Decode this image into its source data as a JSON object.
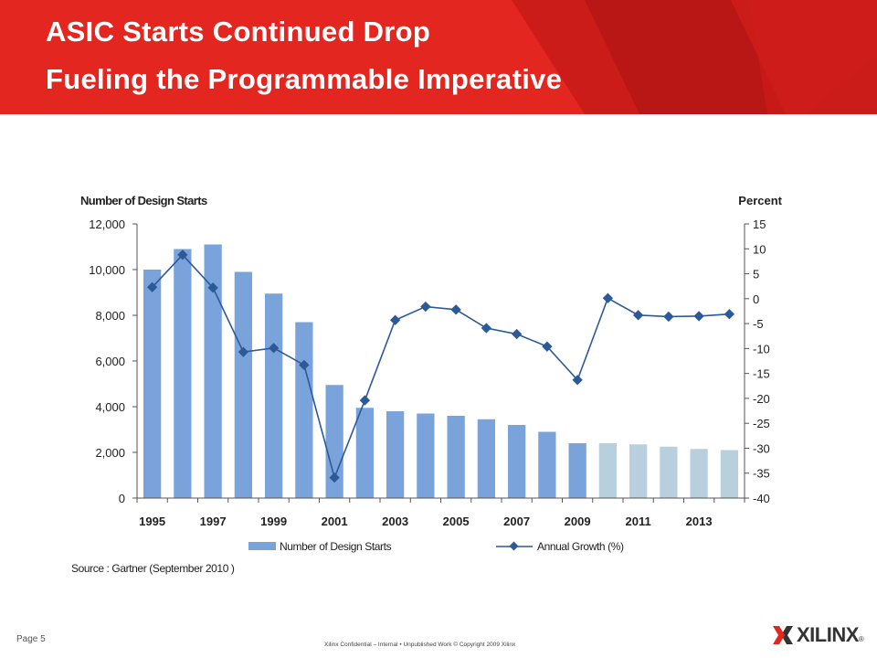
{
  "slide": {
    "title_line1": "ASIC Starts Continued Drop",
    "title_line2": "Fueling the Programmable Imperative",
    "page_label": "Page 5",
    "footer_text": "Xilinx Confidential – Internal • Unpublished Work © Copyright 2009 Xilinx",
    "logo_text": "XILINX",
    "logo_mark": "®"
  },
  "colors": {
    "header_red": "#e3261f",
    "bar_actual": "#7aa3dc",
    "bar_forecast": "#b8d0de",
    "line": "#2c5a99"
  },
  "chart_data": {
    "type": "bar+line",
    "left_axis_title": "Number of Design Starts",
    "right_axis_title": "Percent",
    "source": "Source : Gartner (September 2010 )",
    "x": [
      1995,
      1996,
      1997,
      1998,
      1999,
      2000,
      2001,
      2002,
      2003,
      2004,
      2005,
      2006,
      2007,
      2008,
      2009,
      2010,
      2011,
      2012,
      2013,
      2014
    ],
    "x_tick_labels": [
      "1995",
      "1997",
      "1999",
      "2001",
      "2003",
      "2005",
      "2007",
      "2009",
      "2011",
      "2013"
    ],
    "left_ylim": [
      0,
      12000
    ],
    "left_ticks": [
      "0",
      "2,000",
      "4,000",
      "6,000",
      "8,000",
      "10,000",
      "12,000"
    ],
    "right_ylim": [
      -40,
      15
    ],
    "right_ticks": [
      "-40",
      "-35",
      "-30",
      "-25",
      "-20",
      "-15",
      "-10",
      "-5",
      "0",
      "5",
      "10",
      "15"
    ],
    "grid": false,
    "legend_position": "bottom",
    "series": [
      {
        "name": "Number of Design Starts",
        "type": "bar",
        "axis": "left",
        "values": [
          10000,
          10900,
          11100,
          9900,
          8950,
          7700,
          4950,
          3950,
          3800,
          3700,
          3600,
          3450,
          3200,
          2900,
          2400,
          2400,
          2350,
          2250,
          2150,
          2100
        ],
        "forecast_from_index": 15
      },
      {
        "name": "Annual Growth (%)",
        "type": "line",
        "axis": "right",
        "marker": "diamond",
        "values": [
          2.3,
          8.8,
          2.2,
          -10.7,
          -9.9,
          -13.3,
          -35.9,
          -20.4,
          -4.3,
          -1.6,
          -2.2,
          -5.9,
          -7.1,
          -9.6,
          -16.3,
          0.1,
          -3.3,
          -3.6,
          -3.5,
          -3.1
        ]
      }
    ]
  }
}
